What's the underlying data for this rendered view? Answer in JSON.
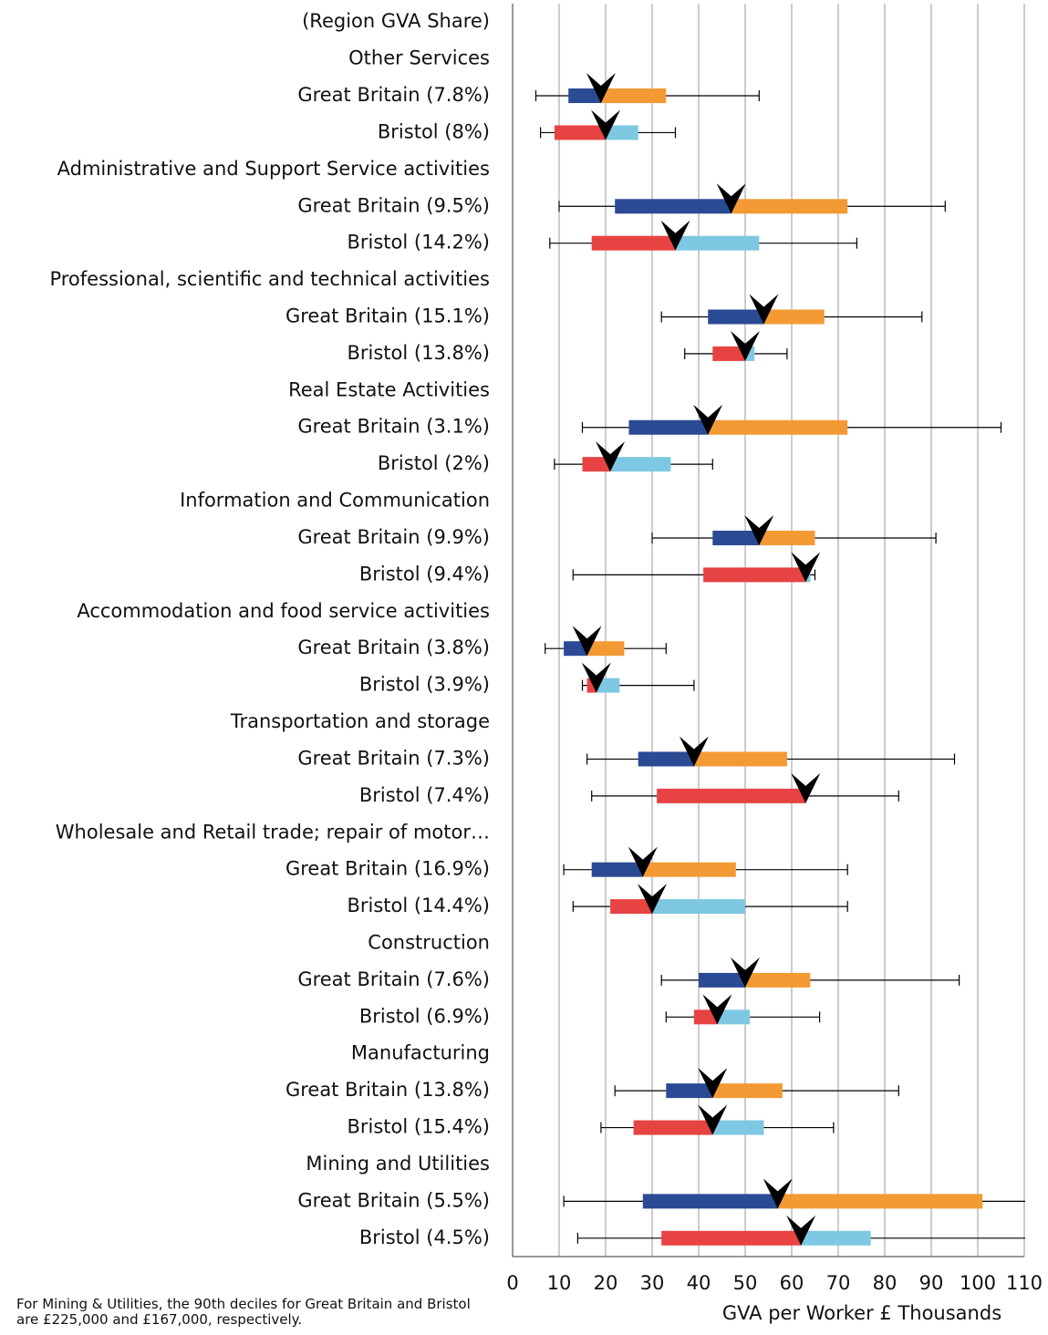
{
  "chart_data": {
    "type": "box",
    "categories": [
      "(Region GVA Share)",
      "Other Services",
      "Great Britain (7.8%)",
      "Bristol (8%)",
      "Administrative and Support Service activities",
      "Great Britain (9.5%)",
      "Bristol (14.2%)",
      "Professional, scientific and technical activities",
      "Great Britain (15.1%)",
      "Bristol (13.8%)",
      "Real Estate Activities",
      "Great Britain (3.1%)",
      "Bristol (2%)",
      "Information and Communication",
      "Great Britain (9.9%)",
      "Bristol (9.4%)",
      "Accommodation and food service activities",
      "Great Britain (3.8%)",
      "Bristol (3.9%)",
      "Transportation and storage",
      "Great Britain (7.3%)",
      "Bristol (7.4%)",
      "Wholesale and Retail trade; repair of motor…",
      "Great Britain (16.9%)",
      "Bristol (14.4%)",
      "Construction",
      "Great Britain (7.6%)",
      "Bristol (6.9%)",
      "Manufacturing",
      "Great Britain (13.8%)",
      "Bristol (15.4%)",
      "Mining and Utilities",
      "Great Britain (5.5%)",
      "Bristol (4.5%)"
    ],
    "stats": [
      null,
      null,
      {
        "values": [
          5,
          12,
          19,
          33,
          53
        ],
        "low_color": "#2b4a94",
        "high_color": "#f39a35"
      },
      {
        "values": [
          6,
          9,
          20,
          27,
          35
        ],
        "low_color": "#e84343",
        "high_color": "#7ec8e3"
      },
      null,
      {
        "values": [
          10,
          22,
          47,
          72,
          93
        ],
        "low_color": "#2b4a94",
        "high_color": "#f39a35"
      },
      {
        "values": [
          8,
          17,
          35,
          53,
          74
        ],
        "low_color": "#e84343",
        "high_color": "#7ec8e3"
      },
      null,
      {
        "values": [
          32,
          42,
          54,
          67,
          88
        ],
        "low_color": "#2b4a94",
        "high_color": "#f39a35"
      },
      {
        "values": [
          37,
          43,
          50,
          52,
          59
        ],
        "low_color": "#e84343",
        "high_color": "#7ec8e3"
      },
      null,
      {
        "values": [
          15,
          25,
          42,
          72,
          105
        ],
        "low_color": "#2b4a94",
        "high_color": "#f39a35"
      },
      {
        "values": [
          9,
          15,
          21,
          34,
          43
        ],
        "low_color": "#e84343",
        "high_color": "#7ec8e3"
      },
      null,
      {
        "values": [
          30,
          43,
          53,
          65,
          91
        ],
        "low_color": "#2b4a94",
        "high_color": "#f39a35"
      },
      {
        "values": [
          13,
          41,
          63,
          64,
          65
        ],
        "low_color": "#e84343",
        "high_color": "#7ec8e3"
      },
      null,
      {
        "values": [
          7,
          11,
          16,
          24,
          33
        ],
        "low_color": "#2b4a94",
        "high_color": "#f39a35"
      },
      {
        "values": [
          15,
          16,
          18,
          23,
          39
        ],
        "low_color": "#e84343",
        "high_color": "#7ec8e3"
      },
      null,
      {
        "values": [
          16,
          27,
          39,
          59,
          95
        ],
        "low_color": "#2b4a94",
        "high_color": "#f39a35"
      },
      {
        "values": [
          17,
          31,
          63,
          63,
          83
        ],
        "low_color": "#e84343",
        "high_color": "#7ec8e3"
      },
      null,
      {
        "values": [
          11,
          17,
          28,
          48,
          72
        ],
        "low_color": "#2b4a94",
        "high_color": "#f39a35"
      },
      {
        "values": [
          13,
          21,
          30,
          50,
          72
        ],
        "low_color": "#e84343",
        "high_color": "#7ec8e3"
      },
      null,
      {
        "values": [
          32,
          40,
          50,
          64,
          96
        ],
        "low_color": "#2b4a94",
        "high_color": "#f39a35"
      },
      {
        "values": [
          33,
          39,
          44,
          51,
          66
        ],
        "low_color": "#e84343",
        "high_color": "#7ec8e3"
      },
      null,
      {
        "values": [
          22,
          33,
          43,
          58,
          83
        ],
        "low_color": "#2b4a94",
        "high_color": "#f39a35"
      },
      {
        "values": [
          19,
          26,
          43,
          54,
          69
        ],
        "low_color": "#e84343",
        "high_color": "#7ec8e3"
      },
      null,
      {
        "values": [
          11,
          28,
          57,
          101,
          225
        ],
        "low_color": "#2b4a94",
        "high_color": "#f39a35"
      },
      {
        "values": [
          14,
          32,
          62,
          77,
          167
        ],
        "low_color": "#e84343",
        "high_color": "#7ec8e3"
      }
    ],
    "xlabel": "GVA per Worker £ Thousands",
    "xlim": [
      0,
      110
    ],
    "xticks": [
      0,
      10,
      20,
      30,
      40,
      50,
      60,
      70,
      80,
      90,
      100,
      110
    ],
    "grid": true,
    "note": "For Mining & Utilities, the 90th deciles for Great Britain and Bristol are £225,000 and £167,000, respectively."
  }
}
